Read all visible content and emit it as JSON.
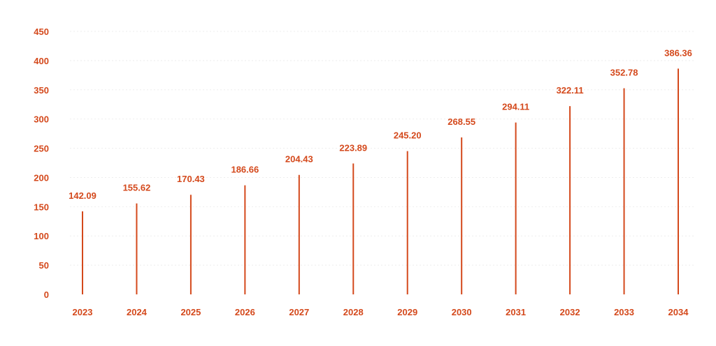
{
  "chart_data": {
    "type": "bar",
    "title": "",
    "xlabel": "",
    "ylabel": "",
    "categories": [
      "2023",
      "2024",
      "2025",
      "2026",
      "2027",
      "2028",
      "2029",
      "2030",
      "2031",
      "2032",
      "2033",
      "2034"
    ],
    "values": [
      142.09,
      155.62,
      170.43,
      186.66,
      204.43,
      223.89,
      245.2,
      268.55,
      294.11,
      322.11,
      352.78,
      386.36
    ],
    "value_labels": [
      "142.09",
      "155.62",
      "170.43",
      "186.66",
      "204.43",
      "223.89",
      "245.20",
      "268.55",
      "294.11",
      "322.11",
      "352.78",
      "386.36"
    ],
    "ylim": [
      0,
      450
    ],
    "yticks": [
      "0",
      "50",
      "100",
      "150",
      "200",
      "250",
      "300",
      "350",
      "400",
      "450"
    ],
    "grid": true,
    "bar_style": "thin-stem",
    "color": "#d4491c"
  }
}
